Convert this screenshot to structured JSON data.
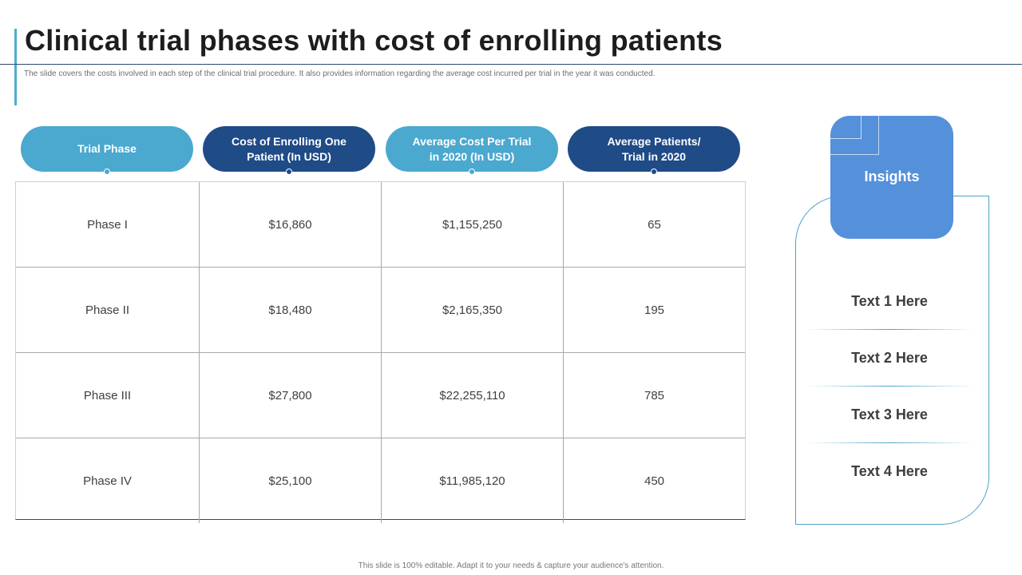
{
  "slide": {
    "title": "Clinical trial phases with cost of enrolling patients",
    "subtitle": "The slide covers the costs involved in each step of the clinical trial procedure. It also provides information regarding the average cost incurred per trial in the year it was conducted.",
    "footer": "This slide is 100% editable. Adapt it to your needs & capture your audience's attention."
  },
  "table": {
    "headers": [
      "Trial Phase",
      "Cost of Enrolling One\nPatient (In USD)",
      "Average Cost Per Trial\nin 2020 (In USD)",
      "Average Patients/\nTrial in 2020"
    ],
    "rows": [
      [
        "Phase I",
        "$16,860",
        "$1,155,250",
        "65"
      ],
      [
        "Phase II",
        "$18,480",
        "$2,165,350",
        "195"
      ],
      [
        "Phase III",
        "$27,800",
        "$22,255,110",
        "785"
      ],
      [
        "Phase IV",
        "$25,100",
        "$11,985,120",
        "450"
      ]
    ]
  },
  "insights": {
    "title": "Insights",
    "items": [
      "Text 1 Here",
      "Text 2 Here",
      "Text 3 Here",
      "Text 4 Here"
    ]
  },
  "colors": {
    "header_light": "#4ba8cf",
    "header_dark": "#1f4b87",
    "insight_box": "#5590db",
    "accent": "#4aaed0"
  }
}
